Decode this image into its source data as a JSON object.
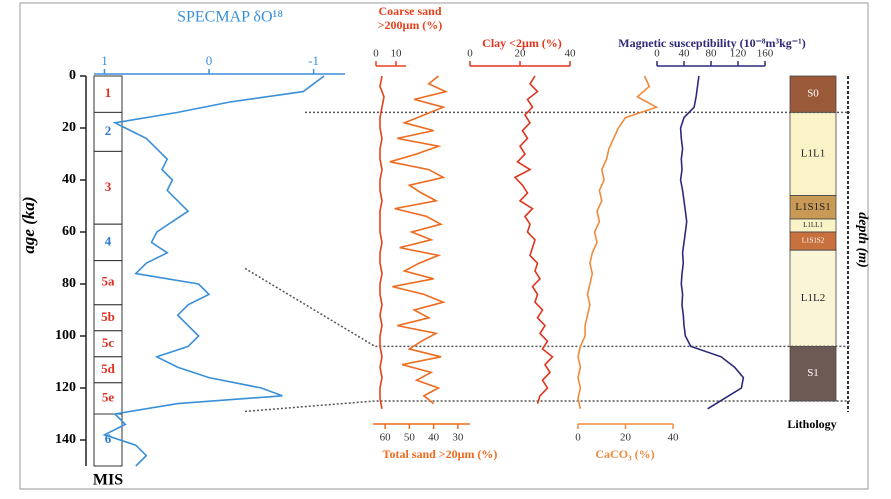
{
  "chart_data": {
    "type": "profile",
    "ylabel": "age (ka)",
    "ylim": [
      0,
      150
    ],
    "yticks": [
      0,
      20,
      40,
      60,
      80,
      100,
      120,
      140
    ],
    "panels": [
      {
        "type": "line",
        "title": "SPECMAP δO¹⁸",
        "color": "#3a8fd8",
        "ylim": [
          1.1,
          -1.3
        ],
        "yticks": [
          1,
          0,
          -1
        ],
        "x": [
          0,
          3,
          6,
          10,
          14,
          18,
          20,
          24,
          28,
          32,
          36,
          40,
          44,
          48,
          52,
          56,
          60,
          64,
          68,
          72,
          76,
          80,
          84,
          88,
          92,
          96,
          100,
          104,
          108,
          112,
          116,
          120,
          123,
          126,
          130,
          134,
          138,
          142,
          146,
          150
        ],
        "values": [
          -1.1,
          -1.0,
          -0.9,
          -0.2,
          0.3,
          0.9,
          0.8,
          0.6,
          0.5,
          0.4,
          0.45,
          0.35,
          0.4,
          0.3,
          0.2,
          0.35,
          0.5,
          0.55,
          0.4,
          0.6,
          0.7,
          0.1,
          0.0,
          0.2,
          0.3,
          0.2,
          0.1,
          0.2,
          0.5,
          0.3,
          0.0,
          -0.5,
          -0.7,
          0.3,
          0.9,
          0.8,
          1.0,
          0.7,
          0.6,
          0.7
        ]
      },
      {
        "type": "line",
        "title": "Coarse sand",
        "subtitle": ">200μm (%)",
        "color": "#e8401c",
        "ylim": [
          0,
          15
        ],
        "yticks": [
          0,
          10
        ],
        "x": [
          0,
          4,
          8,
          12,
          16,
          20,
          24,
          28,
          32,
          36,
          40,
          44,
          48,
          52,
          56,
          60,
          64,
          68,
          72,
          76,
          80,
          84,
          88,
          92,
          96,
          100,
          104,
          108,
          112,
          116,
          120,
          124,
          128
        ],
        "values": [
          3,
          2,
          4,
          3,
          2,
          2,
          3,
          2,
          2,
          3,
          2,
          2,
          3,
          2,
          2,
          2,
          3,
          2,
          2,
          3,
          2,
          2,
          3,
          2,
          3,
          2,
          2,
          3,
          2,
          3,
          2,
          2,
          3
        ]
      },
      {
        "type": "line",
        "title": "Total sand >20μm (%)",
        "color": "#ee6a1e",
        "ylim": [
          65,
          25
        ],
        "yticks": [
          60,
          50,
          40,
          30
        ],
        "x": [
          0,
          3,
          6,
          9,
          12,
          15,
          18,
          21,
          24,
          27,
          30,
          33,
          36,
          39,
          42,
          45,
          48,
          51,
          54,
          57,
          60,
          63,
          66,
          69,
          72,
          75,
          78,
          81,
          84,
          87,
          90,
          93,
          96,
          99,
          102,
          105,
          108,
          111,
          114,
          117,
          120,
          123,
          126
        ],
        "values": [
          38,
          42,
          35,
          48,
          36,
          44,
          52,
          40,
          55,
          38,
          47,
          58,
          42,
          36,
          50,
          45,
          39,
          56,
          43,
          37,
          49,
          41,
          54,
          38,
          46,
          52,
          40,
          57,
          44,
          36,
          48,
          42,
          55,
          39,
          45,
          50,
          37,
          53,
          41,
          47,
          38,
          44,
          40
        ]
      },
      {
        "type": "line",
        "title": "Clay <2μm (%)",
        "color": "#e0341c",
        "ylim": [
          0,
          40
        ],
        "yticks": [
          0,
          20,
          40
        ],
        "x": [
          0,
          3,
          6,
          9,
          12,
          15,
          18,
          21,
          24,
          27,
          30,
          33,
          36,
          39,
          42,
          45,
          48,
          51,
          54,
          57,
          60,
          63,
          66,
          69,
          72,
          75,
          78,
          81,
          84,
          87,
          90,
          93,
          96,
          99,
          102,
          105,
          108,
          111,
          114,
          117,
          120,
          123,
          126
        ],
        "values": [
          26,
          24,
          27,
          23,
          25,
          22,
          24,
          21,
          23,
          20,
          22,
          19,
          24,
          18,
          21,
          23,
          20,
          25,
          22,
          24,
          23,
          26,
          25,
          24,
          27,
          26,
          28,
          25,
          27,
          26,
          29,
          27,
          30,
          28,
          31,
          29,
          33,
          30,
          32,
          29,
          31,
          28,
          27
        ]
      },
      {
        "type": "line",
        "title": "CaCO₃ (%)",
        "color": "#f08a3c",
        "ylim": [
          0,
          40
        ],
        "yticks": [
          0,
          20,
          40
        ],
        "x": [
          0,
          4,
          8,
          12,
          16,
          20,
          24,
          28,
          32,
          36,
          40,
          44,
          48,
          52,
          56,
          60,
          64,
          68,
          72,
          76,
          80,
          84,
          88,
          92,
          96,
          100,
          104,
          108,
          112,
          116,
          120,
          124,
          128
        ],
        "values": [
          28,
          30,
          25,
          33,
          20,
          17,
          15,
          13,
          12,
          10,
          11,
          9,
          10,
          8,
          9,
          7,
          8,
          6,
          5,
          6,
          5,
          4,
          5,
          4,
          3,
          3,
          1,
          0,
          1,
          0,
          1,
          0,
          1
        ]
      },
      {
        "type": "line",
        "title": "Magnetic susceptibility (10⁻⁸m³kg⁻¹)",
        "color": "#2e2a7a",
        "ylim": [
          0,
          160
        ],
        "yticks": [
          0,
          40,
          80,
          120,
          160
        ],
        "x": [
          0,
          4,
          8,
          12,
          16,
          20,
          24,
          28,
          32,
          36,
          40,
          44,
          48,
          52,
          56,
          60,
          64,
          68,
          72,
          76,
          80,
          84,
          88,
          92,
          96,
          100,
          104,
          108,
          112,
          116,
          120,
          124,
          128
        ],
        "values": [
          62,
          60,
          58,
          55,
          40,
          35,
          36,
          38,
          36,
          37,
          35,
          38,
          40,
          42,
          44,
          42,
          40,
          38,
          39,
          37,
          36,
          38,
          37,
          39,
          40,
          42,
          50,
          95,
          115,
          128,
          125,
          100,
          75
        ]
      }
    ],
    "mis": {
      "label": "MIS",
      "stages": [
        {
          "label": "1",
          "top": 0,
          "bottom": 14,
          "color": "#e03020"
        },
        {
          "label": "2",
          "top": 14,
          "bottom": 29,
          "color": "#2a7ad0"
        },
        {
          "label": "3",
          "top": 29,
          "bottom": 57,
          "color": "#e03020"
        },
        {
          "label": "4",
          "top": 57,
          "bottom": 71,
          "color": "#2a7ad0"
        },
        {
          "label": "5a",
          "top": 71,
          "bottom": 88,
          "color": "#e03020"
        },
        {
          "label": "5b",
          "top": 88,
          "bottom": 98,
          "color": "#e03020"
        },
        {
          "label": "5c",
          "top": 98,
          "bottom": 108,
          "color": "#e03020"
        },
        {
          "label": "5d",
          "top": 108,
          "bottom": 118,
          "color": "#e03020"
        },
        {
          "label": "5e",
          "top": 118,
          "bottom": 130,
          "color": "#e03020"
        },
        {
          "label": "6",
          "top": 130,
          "bottom": 150,
          "color": "#2a7ad0"
        }
      ]
    },
    "lithology": {
      "title": "Lithology",
      "depth_label": "depth (m)",
      "units": [
        {
          "label": "S0",
          "top": 0,
          "bottom": 14,
          "color": "#9a5a3a"
        },
        {
          "label": "L1L1",
          "top": 14,
          "bottom": 46,
          "color": "#fbf3c8"
        },
        {
          "label": "L1S1S1",
          "top": 46,
          "bottom": 55,
          "color": "#c89a55"
        },
        {
          "label": "L1LL1",
          "top": 55,
          "bottom": 60,
          "color": "#fbf3c8"
        },
        {
          "label": "L1S1S2",
          "top": 60,
          "bottom": 67,
          "color": "#c8703e"
        },
        {
          "label": "L1L2",
          "top": 67,
          "bottom": 104,
          "color": "#fbf5d8"
        },
        {
          "label": "S1",
          "top": 104,
          "bottom": 125,
          "color": "#6e5a55"
        }
      ]
    },
    "ties": [
      [
        14,
        14
      ],
      [
        74,
        104
      ],
      [
        129,
        125
      ]
    ]
  }
}
